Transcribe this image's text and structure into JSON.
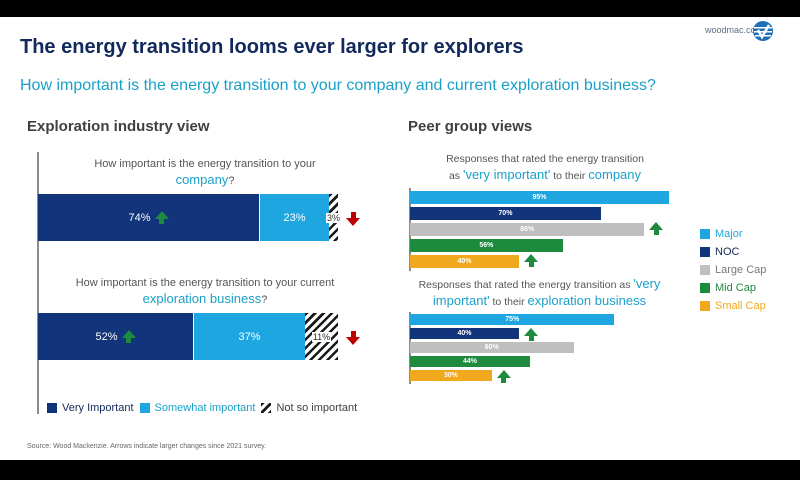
{
  "header": {
    "site": "woodmac.com",
    "logo_icon": "woodmac-globe-logo",
    "title": "The energy transition looms ever larger for explorers",
    "subtitle": "How important is the energy transition to your company and current exploration business?"
  },
  "left": {
    "section_title": "Exploration industry view",
    "q1": {
      "pre": "How important is the energy transition to your",
      "hl": "company",
      "post": "?"
    },
    "q2": {
      "pre": "How important is the energy transition to your current",
      "hl": "exploration business",
      "post": "?"
    },
    "legend": [
      {
        "label": "Very Important",
        "color": "#12347a"
      },
      {
        "label": "Somewhat important",
        "color": "#1ea6e0"
      },
      {
        "label": "Not so important",
        "color": "hatched"
      }
    ]
  },
  "right": {
    "section_title": "Peer group views",
    "c1": {
      "pre": "Responses that rated the energy transition",
      "pre2": "as",
      "hl1": "'very important'",
      "mid": "to their",
      "hl2": "company"
    },
    "c2": {
      "pre": "Responses that rated the energy transition as",
      "hl1": "'very",
      "hl1b": "important'",
      "mid": "to their",
      "hl2": "exploration business"
    },
    "legend": [
      {
        "label": "Major",
        "color": "#1ea6e0"
      },
      {
        "label": "NOC",
        "color": "#12347a"
      },
      {
        "label": "Large Cap",
        "color": "#bfbfbf"
      },
      {
        "label": "Mid Cap",
        "color": "#1e8a3e"
      },
      {
        "label": "Small Cap",
        "color": "#f0a81e"
      }
    ]
  },
  "footer": {
    "source": "Source: Wood Mackenzie. Arrows indicate larger changes since 2021 survey."
  },
  "chart_data": [
    {
      "type": "bar",
      "orientation": "horizontal-stacked",
      "title": "Exploration industry view",
      "categories": [
        "How important is the energy transition to your company?",
        "How important is the energy transition to your current exploration business?"
      ],
      "series": [
        {
          "name": "Very Important",
          "values": [
            74,
            52
          ],
          "labels": [
            "74%",
            "52%"
          ],
          "color": "#12347a",
          "arrows": [
            "up",
            "up"
          ]
        },
        {
          "name": "Somewhat important",
          "values": [
            23,
            37
          ],
          "labels": [
            "23%",
            "37%"
          ],
          "color": "#1ea6e0",
          "arrows": [
            null,
            null
          ]
        },
        {
          "name": "Not so important",
          "values": [
            3,
            11
          ],
          "labels": [
            "3%",
            "11%"
          ],
          "color": "hatched",
          "arrows": [
            "down",
            "down"
          ]
        }
      ],
      "legend_position": "bottom"
    },
    {
      "type": "bar",
      "orientation": "horizontal",
      "title": "Responses that rated the energy transition as 'very important' to their company",
      "categories": [
        "Major",
        "NOC",
        "Large Cap",
        "Mid Cap",
        "Small Cap"
      ],
      "values": [
        95,
        70,
        86,
        56,
        40
      ],
      "labels": [
        "95%",
        "70%",
        "86%",
        "56%",
        "40%"
      ],
      "uncertain_values": {
        "Large Cap": "label faint; read as 86%"
      },
      "colors": [
        "#1ea6e0",
        "#12347a",
        "#bfbfbf",
        "#1e8a3e",
        "#f0a81e"
      ],
      "arrows": [
        null,
        null,
        "up",
        null,
        "up"
      ],
      "legend_position": "right"
    },
    {
      "type": "bar",
      "orientation": "horizontal",
      "title": "Responses that rated the energy transition as 'very important' to their exploration business",
      "categories": [
        "Major",
        "NOC",
        "Large Cap",
        "Mid Cap",
        "Small Cap"
      ],
      "values": [
        75,
        40,
        60,
        44,
        30
      ],
      "labels": [
        "75%",
        "40%",
        "60%",
        "44%",
        "30%"
      ],
      "uncertain_values": {
        "Large Cap": "label faint; read as 60%, bar length suggests closer to 50%"
      },
      "colors": [
        "#1ea6e0",
        "#12347a",
        "#bfbfbf",
        "#1e8a3e",
        "#f0a81e"
      ],
      "arrows": [
        null,
        "up",
        null,
        null,
        "up"
      ],
      "legend_position": "right"
    }
  ]
}
